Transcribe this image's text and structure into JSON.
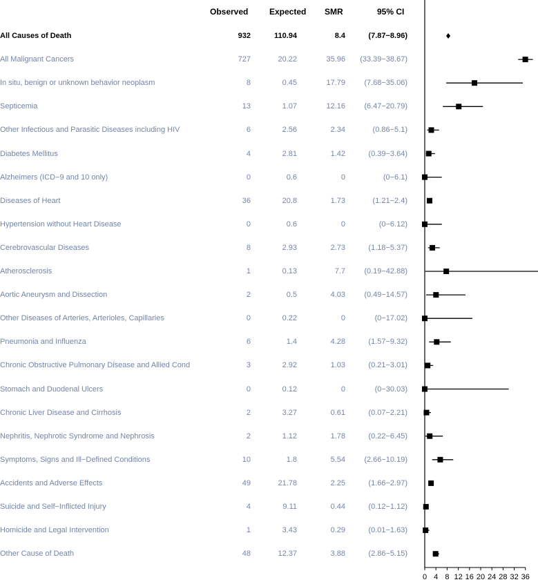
{
  "headers": {
    "observed": "Observed",
    "expected": "Expected",
    "smr": "SMR",
    "ci": "95% CI"
  },
  "chart_data": {
    "type": "forest",
    "columns": [
      "Observed",
      "Expected",
      "SMR",
      "95% CI"
    ],
    "xlim": [
      0,
      40
    ],
    "xticks": [
      "0",
      "4",
      "8",
      "12",
      "16",
      "20",
      "24",
      "28",
      "32",
      "36"
    ],
    "rows": [
      {
        "label": "All Causes of Death",
        "observed": "932",
        "expected": "110.94",
        "smr": "8.4",
        "ci": "(7.87−8.96)",
        "est": 8.4,
        "lo": 7.87,
        "hi": 8.96,
        "bold": true
      },
      {
        "label": "All Malignant Cancers",
        "observed": "727",
        "expected": "20.22",
        "smr": "35.96",
        "ci": "(33.39−38.67)",
        "est": 35.96,
        "lo": 33.39,
        "hi": 38.67
      },
      {
        "label": "In situ, benign or unknown behavior neoplasm",
        "observed": "8",
        "expected": "0.45",
        "smr": "17.79",
        "ci": "(7.68−35.06)",
        "est": 17.79,
        "lo": 7.68,
        "hi": 35.06
      },
      {
        "label": "Septicemia",
        "observed": "13",
        "expected": "1.07",
        "smr": "12.16",
        "ci": "(6.47−20.79)",
        "est": 12.16,
        "lo": 6.47,
        "hi": 20.79
      },
      {
        "label": "Other Infectious and Parasitic Diseases including HIV",
        "observed": "6",
        "expected": "2.56",
        "smr": "2.34",
        "ci": "(0.86−5.1)",
        "est": 2.34,
        "lo": 0.86,
        "hi": 5.1
      },
      {
        "label": "Diabetes Mellitus",
        "observed": "4",
        "expected": "2.81",
        "smr": "1.42",
        "ci": "(0.39−3.64)",
        "est": 1.42,
        "lo": 0.39,
        "hi": 3.64
      },
      {
        "label": "Alzheimers (ICD−9 and 10 only)",
        "observed": "0",
        "expected": "0.6",
        "smr": "0",
        "ci": "(0−6.1)",
        "est": 0,
        "lo": 0,
        "hi": 6.1
      },
      {
        "label": "Diseases of Heart",
        "observed": "36",
        "expected": "20.8",
        "smr": "1.73",
        "ci": "(1.21−2.4)",
        "est": 1.73,
        "lo": 1.21,
        "hi": 2.4
      },
      {
        "label": "Hypertension without Heart Disease",
        "observed": "0",
        "expected": "0.6",
        "smr": "0",
        "ci": "(0−6.12)",
        "est": 0,
        "lo": 0,
        "hi": 6.12
      },
      {
        "label": "Cerebrovascular Diseases",
        "observed": "8",
        "expected": "2.93",
        "smr": "2.73",
        "ci": "(1.18−5.37)",
        "est": 2.73,
        "lo": 1.18,
        "hi": 5.37
      },
      {
        "label": "Atherosclerosis",
        "observed": "1",
        "expected": "0.13",
        "smr": "7.7",
        "ci": "(0.19−42.88)",
        "est": 7.7,
        "lo": 0.19,
        "hi": 42.88
      },
      {
        "label": "Aortic Aneurysm and Dissection",
        "observed": "2",
        "expected": "0.5",
        "smr": "4.03",
        "ci": "(0.49−14.57)",
        "est": 4.03,
        "lo": 0.49,
        "hi": 14.57
      },
      {
        "label": "Other Diseases of Arteries, Arterioles, Capillaries",
        "observed": "0",
        "expected": "0.22",
        "smr": "0",
        "ci": "(0−17.02)",
        "est": 0,
        "lo": 0,
        "hi": 17.02
      },
      {
        "label": "Pneumonia and Influenza",
        "observed": "6",
        "expected": "1.4",
        "smr": "4.28",
        "ci": "(1.57−9.32)",
        "est": 4.28,
        "lo": 1.57,
        "hi": 9.32
      },
      {
        "label": "Chronic Obstructive Pulmonary Disease and Allied Cond",
        "observed": "3",
        "expected": "2.92",
        "smr": "1.03",
        "ci": "(0.21−3.01)",
        "est": 1.03,
        "lo": 0.21,
        "hi": 3.01
      },
      {
        "label": "Stomach and Duodenal Ulcers",
        "observed": "0",
        "expected": "0.12",
        "smr": "0",
        "ci": "(0−30.03)",
        "est": 0,
        "lo": 0,
        "hi": 30.03
      },
      {
        "label": "Chronic Liver Disease and Cirrhosis",
        "observed": "2",
        "expected": "3.27",
        "smr": "0.61",
        "ci": "(0.07−2.21)",
        "est": 0.61,
        "lo": 0.07,
        "hi": 2.21
      },
      {
        "label": "Nephritis, Nephrotic Syndrome and Nephrosis",
        "observed": "2",
        "expected": "1.12",
        "smr": "1.78",
        "ci": "(0.22−6.45)",
        "est": 1.78,
        "lo": 0.22,
        "hi": 6.45
      },
      {
        "label": "Symptoms, Signs and Ill−Defined Conditions",
        "observed": "10",
        "expected": "1.8",
        "smr": "5.54",
        "ci": "(2.66−10.19)",
        "est": 5.54,
        "lo": 2.66,
        "hi": 10.19
      },
      {
        "label": "Accidents and Adverse Effects",
        "observed": "49",
        "expected": "21.78",
        "smr": "2.25",
        "ci": "(1.66−2.97)",
        "est": 2.25,
        "lo": 1.66,
        "hi": 2.97
      },
      {
        "label": "Suicide and Self−Inflicted Injury",
        "observed": "4",
        "expected": "9.11",
        "smr": "0.44",
        "ci": "(0.12−1.12)",
        "est": 0.44,
        "lo": 0.12,
        "hi": 1.12
      },
      {
        "label": "Homicide and Legal Intervention",
        "observed": "1",
        "expected": "3.43",
        "smr": "0.29",
        "ci": "(0.01−1.63)",
        "est": 0.29,
        "lo": 0.01,
        "hi": 1.63
      },
      {
        "label": "Other Cause of Death",
        "observed": "48",
        "expected": "12.37",
        "smr": "3.88",
        "ci": "(2.86−5.15)",
        "est": 3.88,
        "lo": 2.86,
        "hi": 5.15
      }
    ]
  }
}
